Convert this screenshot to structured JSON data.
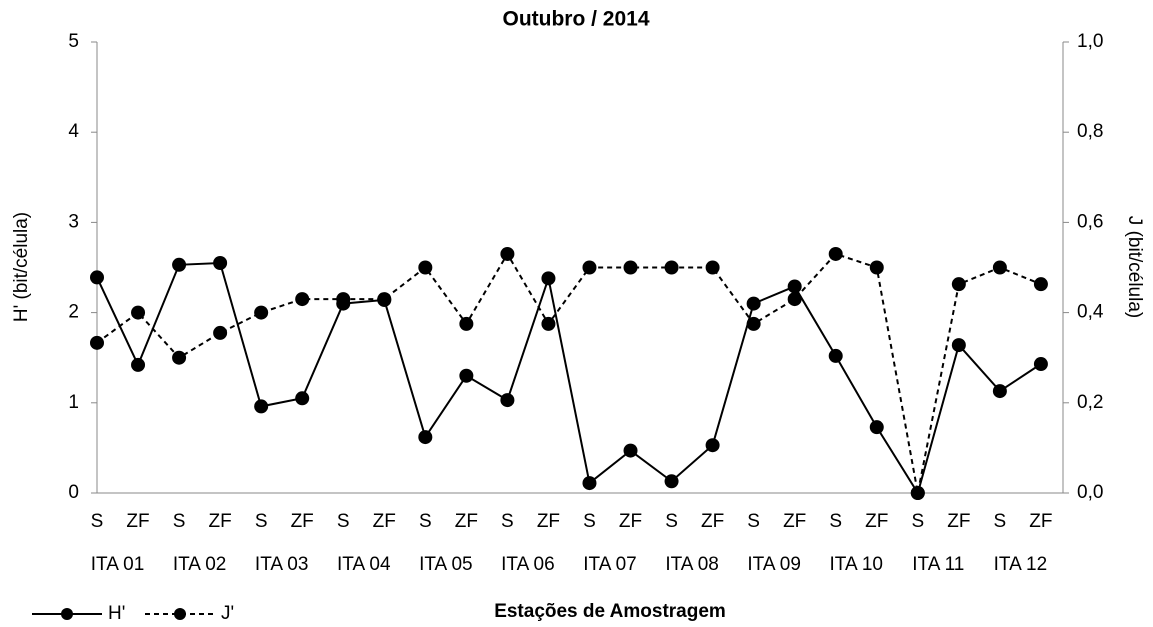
{
  "chart_data": {
    "type": "line",
    "title": "Outubro / 2014",
    "ylabel": "H' (bit/célula)",
    "y2label": "J (bit/célula)",
    "xlabel": "Estações de Amostragem",
    "categories": [
      "S",
      "ZF",
      "S",
      "ZF",
      "S",
      "ZF",
      "S",
      "ZF",
      "S",
      "ZF",
      "S",
      "ZF",
      "S",
      "ZF",
      "S",
      "ZF",
      "S",
      "ZF",
      "S",
      "ZF",
      "S",
      "ZF",
      "S",
      "ZF"
    ],
    "groups": [
      "ITA 01",
      "ITA 02",
      "ITA 03",
      "ITA 04",
      "ITA 05",
      "ITA 06",
      "ITA 07",
      "ITA 08",
      "ITA 09",
      "ITA 10",
      "ITA 11",
      "ITA 12"
    ],
    "ylim": [
      0,
      5
    ],
    "yticks": [
      0,
      1,
      2,
      3,
      4,
      5
    ],
    "y2lim": [
      0,
      1
    ],
    "y2ticks": [
      {
        "value": 0,
        "label": "0,0"
      },
      {
        "value": 0.2,
        "label": "0,2"
      },
      {
        "value": 0.4,
        "label": "0,4"
      },
      {
        "value": 0.6,
        "label": "0,6"
      },
      {
        "value": 0.8,
        "label": "0,8"
      },
      {
        "value": 1,
        "label": "1,0"
      }
    ],
    "legend": "bottom-left",
    "series": [
      {
        "name": "H'",
        "color": "#000000",
        "dashed": false,
        "values": [
          2.39,
          1.42,
          2.53,
          2.55,
          0.96,
          1.05,
          2.1,
          2.14,
          0.62,
          1.3,
          1.03,
          2.38,
          0.11,
          0.47,
          0.13,
          0.53,
          2.1,
          2.29,
          1.52,
          0.73,
          0,
          1.64,
          1.13,
          1.43
        ]
      },
      {
        "name": "J'",
        "color": "#000000",
        "dashed": true,
        "axis": "y2",
        "values": [
          0.333,
          0.4,
          0.3,
          0.355,
          0.4,
          0.43,
          0.43,
          0.43,
          0.5,
          0.375,
          0.53,
          0.375,
          0.5,
          0.5,
          0.5,
          0.5,
          0.375,
          0.43,
          0.53,
          0.5,
          0,
          0.463,
          0.5,
          0.463
        ]
      }
    ]
  }
}
